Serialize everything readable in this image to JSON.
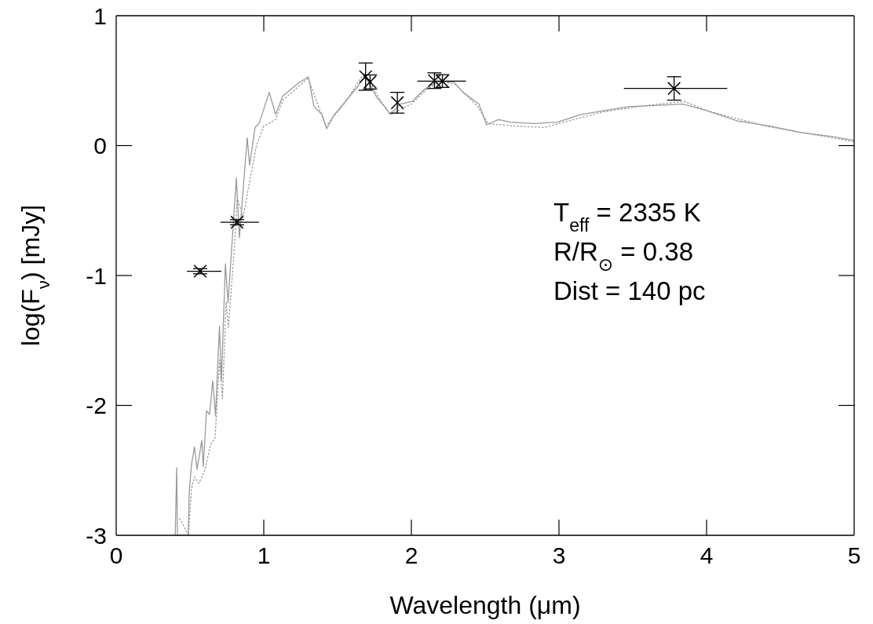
{
  "chart_data": {
    "type": "line",
    "xlabel": "Wavelength (μm)",
    "ylabel": "log(F$_{ν}$) [mJy]",
    "xlim": [
      0,
      5
    ],
    "ylim": [
      -3,
      1
    ],
    "xticks": [
      0,
      1,
      2,
      3,
      4,
      5
    ],
    "yticks": [
      -3,
      -2,
      -1,
      0,
      1
    ],
    "grid": false,
    "annotations": [
      "T$_{eff}$ = 2335 K",
      "R/R$_{⊙}$ = 0.38",
      "Dist = 140 pc"
    ],
    "series": [
      {
        "color": "#999999",
        "line_style": "solid",
        "x": [
          0.4,
          0.41,
          0.415,
          0.488,
          0.495,
          0.51,
          0.53,
          0.548,
          0.58,
          0.59,
          0.612,
          0.633,
          0.654,
          0.673,
          0.7,
          0.713,
          0.74,
          0.758,
          0.814,
          0.835,
          0.862,
          0.888,
          0.904,
          0.941,
          0.968,
          1.037,
          1.08,
          1.128,
          1.234,
          1.303,
          1.34,
          1.394,
          1.426,
          1.473,
          1.553,
          1.633,
          1.686,
          1.766,
          1.819,
          1.856,
          1.926,
          2.005,
          2.085,
          2.165,
          2.287,
          2.35,
          2.457,
          2.51,
          2.59,
          2.67,
          2.83,
          2.99,
          3.149,
          3.31,
          3.47,
          3.68,
          3.84,
          4.0,
          4.21,
          4.43,
          4.64,
          4.85,
          5.0
        ],
        "values": [
          -3,
          -2.48,
          -3,
          -3,
          -2.67,
          -2.46,
          -2.32,
          -2.49,
          -2.27,
          -2.47,
          -2.04,
          -2.07,
          -1.81,
          -2.08,
          -1.39,
          -1.81,
          -0.91,
          -1.21,
          -0.25,
          -0.71,
          -0.31,
          0.06,
          -0.15,
          0.14,
          0.17,
          0.41,
          0.24,
          0.38,
          0.48,
          0.53,
          0.3,
          0.24,
          0.13,
          0.23,
          0.34,
          0.45,
          0.54,
          0.37,
          0.3,
          0.24,
          0.32,
          0.34,
          0.43,
          0.49,
          0.49,
          0.41,
          0.32,
          0.16,
          0.2,
          0.18,
          0.17,
          0.18,
          0.24,
          0.27,
          0.3,
          0.31,
          0.32,
          0.27,
          0.19,
          0.15,
          0.1,
          0.07,
          0.04
        ]
      },
      {
        "color": "#999999",
        "line_style": "dotted",
        "x": [
          0.43,
          0.49,
          0.51,
          0.53,
          0.56,
          0.6,
          0.64,
          0.67,
          0.7,
          0.72,
          0.745,
          0.76,
          0.8,
          0.82,
          0.86,
          0.9,
          0.95,
          1.0,
          1.08,
          1.13,
          1.3,
          1.42,
          1.55,
          1.68,
          1.8,
          1.86,
          2.0,
          2.1,
          2.2,
          2.3,
          2.45,
          2.52,
          2.7,
          2.9,
          3.0,
          3.3,
          3.6,
          3.85,
          4.0,
          4.4,
          4.8,
          5.0
        ],
        "values": [
          -2.87,
          -3,
          -2.64,
          -2.55,
          -2.6,
          -2.5,
          -2.3,
          -2.25,
          -1.65,
          -1.95,
          -1.2,
          -1.4,
          -0.8,
          -0.4,
          -0.55,
          -0.3,
          0.0,
          0.15,
          0.2,
          0.35,
          0.52,
          0.15,
          0.33,
          0.56,
          0.33,
          0.24,
          0.32,
          0.43,
          0.5,
          0.47,
          0.3,
          0.17,
          0.15,
          0.14,
          0.17,
          0.26,
          0.31,
          0.34,
          0.27,
          0.15,
          0.07,
          0.03
        ]
      },
      {
        "type": "scatter",
        "color": "#000000",
        "marker": "cross",
        "x": [
          0.569,
          0.819,
          1.69,
          1.72,
          1.905,
          2.156,
          2.21,
          3.78
        ],
        "values": [
          -0.967,
          -0.59,
          0.53,
          0.49,
          0.33,
          0.5,
          0.496,
          0.44
        ],
        "errors": [
          0.02,
          0.02,
          [
            0.426,
            0.636
          ],
          [
            0.436,
            0.544
          ],
          [
            0.25,
            0.41
          ],
          [
            0.44,
            0.56
          ],
          [
            0.448,
            0.546
          ],
          [
            0.35,
            0.53
          ]
        ],
        "xerrors": [
          [
            0.479,
            0.713
          ],
          [
            0.707,
            0.968
          ],
          null,
          null,
          null,
          null,
          [
            2.04,
            2.37
          ],
          [
            3.44,
            4.14
          ]
        ]
      }
    ]
  }
}
